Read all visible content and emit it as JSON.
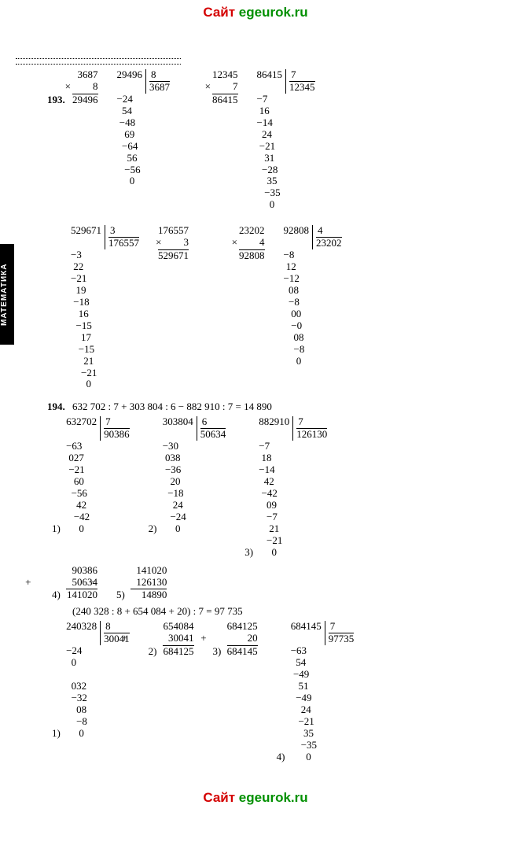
{
  "watermark": {
    "text1": "Сайт ",
    "text2": "egeurok.ru"
  },
  "sidetab": "МАТЕМАТИКА",
  "p193": {
    "num": "193.",
    "mult1": {
      "a": "3687",
      "b": "8",
      "op": "×",
      "res": "29496"
    },
    "div1": {
      "dividend": "29496",
      "divisor": "8",
      "quotient": "3687",
      "steps": "−24\n  54\n −48\n   69\n  −64\n    56\n   −56\n     0"
    },
    "mult2": {
      "a": "12345",
      "b": "7",
      "op": "×",
      "res": "86415"
    },
    "div2": {
      "dividend": "86415",
      "divisor": "7",
      "quotient": "12345",
      "steps": "−7\n 16\n−14\n  24\n −21\n   31\n  −28\n    35\n   −35\n     0"
    },
    "div3": {
      "dividend": "529671",
      "divisor": "3",
      "quotient": "176557",
      "steps": "−3\n 22\n−21\n  19\n −18\n   16\n  −15\n    17\n   −15\n     21\n    −21\n      0"
    },
    "mult3": {
      "a": "176557",
      "b": "3",
      "op": "×",
      "res": "529671"
    },
    "mult4": {
      "a": "23202",
      "b": "4",
      "op": "×",
      "res": "92808"
    },
    "div4": {
      "dividend": "92808",
      "divisor": "4",
      "quotient": "23202",
      "steps": "−8\n 12\n−12\n  08\n  −8\n   00\n   −0\n    08\n    −8\n     0"
    }
  },
  "p194": {
    "num": "194.",
    "expr1": "632 702 : 7 + 303 804 : 6 − 882 910 : 7 = 14 890",
    "parts1": [
      {
        "n": "1)",
        "dividend": "632702",
        "divisor": "7",
        "quotient": "90386",
        "steps": "−63\n 027\n −21\n   60\n  −56\n    42\n   −42\n     0"
      },
      {
        "n": "2)",
        "dividend": "303804",
        "divisor": "6",
        "quotient": "50634",
        "steps": "−30\n 038\n −36\n   20\n  −18\n    24\n   −24\n     0"
      },
      {
        "n": "3)",
        "dividend": "882910",
        "divisor": "7",
        "quotient": "126130",
        "steps": "−7\n 18\n−14\n  42\n −42\n   09\n   −7\n    21\n   −21\n     0"
      }
    ],
    "add": [
      {
        "n": "4)",
        "a": "90386",
        "b": "50634",
        "op": "+",
        "res": "141020"
      },
      {
        "n": "5)",
        "a": "141020",
        "b": "126130",
        "op": "−",
        "res": "14890"
      }
    ],
    "expr2": "(240 328 : 8 + 654 084 + 20) : 7 = 97 735",
    "parts2": [
      {
        "n": "1)",
        "dividend": "240328",
        "divisor": "8",
        "quotient": "30041",
        "steps": "−24\n  0\n\n  032\n  −32\n    08\n    −8\n     0"
      },
      {
        "n": "2)",
        "a": "654084",
        "b": "30041",
        "op": "+",
        "res": "684125"
      },
      {
        "n": "3)",
        "a": "684125",
        "b": "20",
        "op": "+",
        "res": "684145"
      },
      {
        "n": "4)",
        "dividend": "684145",
        "divisor": "7",
        "quotient": "97735",
        "steps": "−63\n  54\n −49\n   51\n  −49\n    24\n   −21\n     35\n    −35\n      0"
      }
    ]
  }
}
